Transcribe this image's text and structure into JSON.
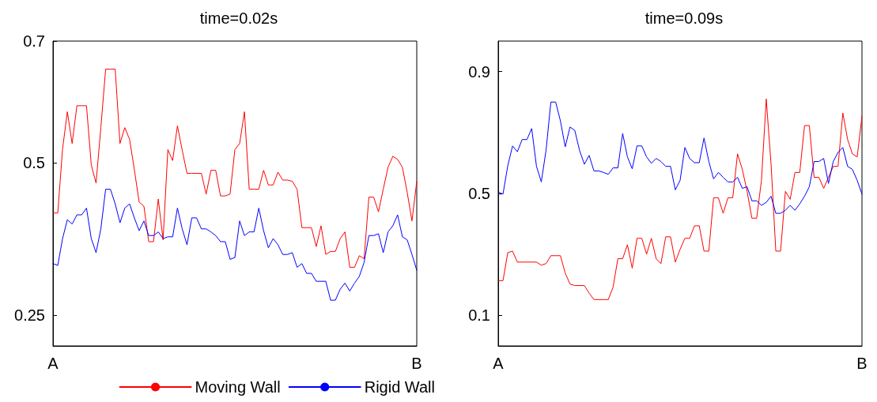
{
  "chart_data": [
    {
      "type": "line",
      "title": "time=0.02s",
      "categories": [
        "A",
        null,
        null,
        null,
        null,
        null,
        null,
        null,
        null,
        null,
        null,
        null,
        null,
        null,
        null,
        null,
        null,
        null,
        null,
        null,
        null,
        null,
        null,
        null,
        null,
        null,
        null,
        null,
        null,
        null,
        null,
        null,
        null,
        null,
        null,
        null,
        null,
        null,
        null,
        null,
        null,
        null,
        null,
        null,
        null,
        null,
        null,
        null,
        null,
        null,
        null,
        null,
        null,
        null,
        null,
        null,
        null,
        null,
        null,
        null,
        null,
        null,
        null,
        null,
        null,
        null,
        null,
        null,
        null,
        null,
        null,
        null,
        null,
        null,
        null,
        null,
        "B"
      ],
      "series": [
        {
          "name": "Moving Wall",
          "color": "#ff0000",
          "values": [
            0.418,
            0.418,
            0.523,
            0.584,
            0.532,
            0.594,
            0.594,
            0.594,
            0.497,
            0.467,
            0.558,
            0.654,
            0.654,
            0.654,
            0.532,
            0.558,
            0.539,
            0.489,
            0.436,
            0.429,
            0.371,
            0.371,
            0.441,
            0.374,
            0.522,
            0.504,
            0.561,
            0.521,
            0.483,
            0.483,
            0.483,
            0.483,
            0.449,
            0.488,
            0.488,
            0.446,
            0.446,
            0.449,
            0.522,
            0.532,
            0.584,
            0.457,
            0.457,
            0.457,
            0.488,
            0.464,
            0.464,
            0.485,
            0.472,
            0.472,
            0.47,
            0.457,
            0.394,
            0.394,
            0.394,
            0.363,
            0.397,
            0.35,
            0.355,
            0.355,
            0.376,
            0.387,
            0.329,
            0.329,
            0.348,
            0.343,
            0.444,
            0.444,
            0.42,
            0.457,
            0.493,
            0.511,
            0.506,
            0.493,
            0.452,
            0.405,
            0.47
          ]
        },
        {
          "name": "Rigid Wall",
          "color": "#0000ff",
          "values": [
            0.335,
            0.332,
            0.376,
            0.407,
            0.4,
            0.415,
            0.415,
            0.426,
            0.376,
            0.353,
            0.392,
            0.457,
            0.457,
            0.433,
            0.402,
            0.426,
            0.433,
            0.41,
            0.389,
            0.405,
            0.381,
            0.381,
            0.387,
            0.376,
            0.379,
            0.379,
            0.426,
            0.392,
            0.366,
            0.41,
            0.41,
            0.392,
            0.392,
            0.387,
            0.381,
            0.371,
            0.371,
            0.342,
            0.345,
            0.405,
            0.381,
            0.387,
            0.387,
            0.426,
            0.389,
            0.361,
            0.376,
            0.366,
            0.35,
            0.35,
            0.353,
            0.329,
            0.335,
            0.319,
            0.319,
            0.306,
            0.306,
            0.306,
            0.275,
            0.275,
            0.293,
            0.303,
            0.29,
            0.303,
            0.314,
            0.337,
            0.381,
            0.381,
            0.384,
            0.353,
            0.387,
            0.397,
            0.415,
            0.379,
            0.374,
            0.35,
            0.324
          ]
        }
      ],
      "ylim": [
        0.2,
        0.7
      ],
      "yticks": [
        0.25,
        0.5,
        0.7
      ],
      "grid": false,
      "legend": "bottom",
      "line_style": "solid",
      "marker": "none"
    },
    {
      "type": "line",
      "title": "time=0.09s",
      "categories": [
        "A",
        null,
        null,
        null,
        null,
        null,
        null,
        null,
        null,
        null,
        null,
        null,
        null,
        null,
        null,
        null,
        null,
        null,
        null,
        null,
        null,
        null,
        null,
        null,
        null,
        null,
        null,
        null,
        null,
        null,
        null,
        null,
        null,
        null,
        null,
        null,
        null,
        null,
        null,
        null,
        null,
        null,
        null,
        null,
        null,
        null,
        null,
        null,
        null,
        null,
        null,
        null,
        null,
        null,
        null,
        null,
        null,
        null,
        null,
        null,
        null,
        null,
        null,
        null,
        null,
        null,
        null,
        null,
        null,
        null,
        null,
        null,
        null,
        null,
        null,
        null,
        "B"
      ],
      "series": [
        {
          "color": "#ff0000",
          "values": [
            0.214,
            0.214,
            0.306,
            0.311,
            0.275,
            0.275,
            0.275,
            0.275,
            0.275,
            0.265,
            0.27,
            0.296,
            0.296,
            0.296,
            0.239,
            0.203,
            0.198,
            0.198,
            0.198,
            0.173,
            0.152,
            0.152,
            0.152,
            0.152,
            0.193,
            0.286,
            0.286,
            0.332,
            0.255,
            0.353,
            0.353,
            0.301,
            0.353,
            0.286,
            0.27,
            0.358,
            0.358,
            0.275,
            0.317,
            0.353,
            0.353,
            0.394,
            0.394,
            0.311,
            0.311,
            0.486,
            0.486,
            0.435,
            0.486,
            0.486,
            0.63,
            0.579,
            0.507,
            0.419,
            0.419,
            0.543,
            0.81,
            0.597,
            0.311,
            0.311,
            0.507,
            0.481,
            0.569,
            0.569,
            0.723,
            0.723,
            0.553,
            0.553,
            0.517,
            0.553,
            0.589,
            0.589,
            0.764,
            0.677,
            0.63,
            0.62,
            0.754
          ]
        },
        {
          "color": "#0000ff",
          "values": [
            0.505,
            0.498,
            0.591,
            0.656,
            0.637,
            0.677,
            0.677,
            0.713,
            0.589,
            0.538,
            0.642,
            0.8,
            0.8,
            0.738,
            0.653,
            0.718,
            0.707,
            0.641,
            0.596,
            0.625,
            0.574,
            0.574,
            0.569,
            0.563,
            0.584,
            0.584,
            0.697,
            0.62,
            0.581,
            0.656,
            0.656,
            0.62,
            0.599,
            0.615,
            0.605,
            0.589,
            0.589,
            0.512,
            0.543,
            0.651,
            0.615,
            0.601,
            0.601,
            0.682,
            0.605,
            0.548,
            0.569,
            0.553,
            0.538,
            0.538,
            0.553,
            0.517,
            0.522,
            0.476,
            0.476,
            0.461,
            0.471,
            0.491,
            0.435,
            0.435,
            0.445,
            0.461,
            0.445,
            0.466,
            0.491,
            0.522,
            0.605,
            0.605,
            0.615,
            0.533,
            0.605,
            0.635,
            0.651,
            0.589,
            0.579,
            0.543,
            0.498
          ]
        }
      ],
      "ylim": [
        0,
        1
      ],
      "yticks": [
        0.1,
        0.5,
        0.9
      ],
      "grid": false,
      "line_style": "solid",
      "marker": "none"
    }
  ]
}
